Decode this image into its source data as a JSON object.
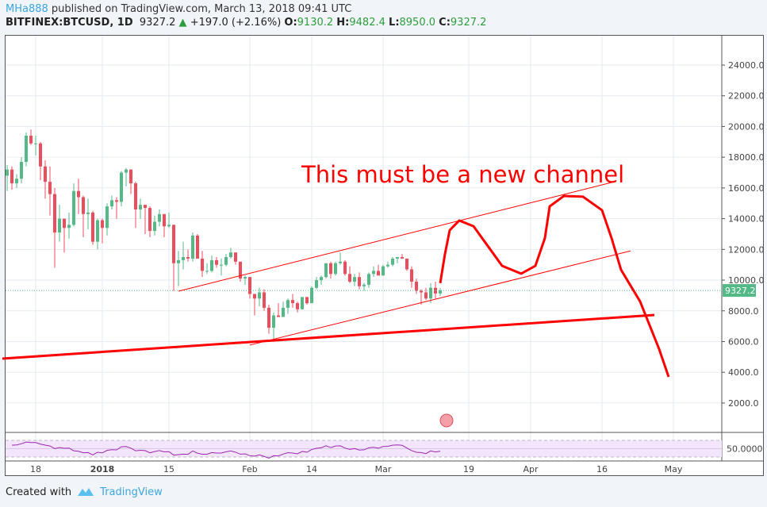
{
  "header": {
    "user": "MHa888",
    "published": "published on TradingView.com, March 13, 2018 09:41 UTC",
    "symbol": "BITFINEX:BTCUSD, 1D",
    "last": "9327.2",
    "change": "+197.0 (+2.16%)",
    "o_label": "O:",
    "o": "9130.2",
    "h_label": "H:",
    "h": "9482.4",
    "l_label": "L:",
    "l": "8950.0",
    "c_label": "C:",
    "c": "9327.2"
  },
  "footer": {
    "created": "Created with",
    "brand": "TradingView"
  },
  "chart_data": {
    "type": "candlestick",
    "colors": {
      "up": "#53b987",
      "down": "#eb4d5c",
      "drawing": "#ff0000",
      "rsi": "#9c27b0",
      "rsi_band": "#f3e5fc"
    },
    "price_ticks": [
      2000,
      4000,
      6000,
      8000,
      10000,
      12000,
      14000,
      16000,
      18000,
      20000,
      22000,
      24000
    ],
    "price_tick_labels": [
      "2000.0",
      "4000.0",
      "6000.0",
      "8000.0",
      "10000.0",
      "12000.0",
      "14000.0",
      "16000.0",
      "18000.0",
      "20000.0",
      "22000.0",
      "24000.0"
    ],
    "ylim": [
      0,
      25000
    ],
    "last_price_label": "9327.2",
    "time_ticks": [
      {
        "date": "2017-12-18",
        "label": "18"
      },
      {
        "date": "2018-01-01",
        "label": "2018"
      },
      {
        "date": "2018-01-15",
        "label": "15"
      },
      {
        "date": "2018-02-01",
        "label": "Feb"
      },
      {
        "date": "2018-02-14",
        "label": "14"
      },
      {
        "date": "2018-03-01",
        "label": "Mar"
      },
      {
        "date": "2018-03-19",
        "label": "19"
      },
      {
        "date": "2018-04-01",
        "label": "Apr"
      },
      {
        "date": "2018-04-16",
        "label": "16"
      },
      {
        "date": "2018-05-01",
        "label": "May"
      }
    ],
    "rsi_label": "50.0000",
    "annotation_text": "This must be a new channel",
    "candles": [
      [
        "2017-12-12",
        16800,
        17500,
        15800,
        17200
      ],
      [
        "2017-12-13",
        17200,
        17400,
        15900,
        16300
      ],
      [
        "2017-12-14",
        16300,
        16900,
        16000,
        16600
      ],
      [
        "2017-12-15",
        16600,
        18000,
        16300,
        17700
      ],
      [
        "2017-12-16",
        17700,
        19600,
        17400,
        19400
      ],
      [
        "2017-12-17",
        19400,
        19800,
        18800,
        18900
      ],
      [
        "2017-12-18",
        18900,
        19400,
        18100,
        18900
      ],
      [
        "2017-12-19",
        18900,
        19000,
        16500,
        17400
      ],
      [
        "2017-12-20",
        17400,
        17800,
        15300,
        16400
      ],
      [
        "2017-12-21",
        16400,
        17400,
        14200,
        15600
      ],
      [
        "2017-12-22",
        15600,
        16000,
        10800,
        13100
      ],
      [
        "2017-12-23",
        13100,
        14900,
        12500,
        14000
      ],
      [
        "2017-12-24",
        14000,
        14000,
        11800,
        13400
      ],
      [
        "2017-12-25",
        13400,
        14400,
        12700,
        13600
      ],
      [
        "2017-12-26",
        13600,
        16300,
        13500,
        15800
      ],
      [
        "2017-12-27",
        15800,
        16600,
        14300,
        15400
      ],
      [
        "2017-12-28",
        15400,
        15500,
        12800,
        14300
      ],
      [
        "2017-12-29",
        14300,
        15300,
        13300,
        14400
      ],
      [
        "2017-12-30",
        14400,
        14500,
        12300,
        12500
      ],
      [
        "2017-12-31",
        12500,
        14000,
        12000,
        13900
      ],
      [
        "2018-01-01",
        13900,
        14000,
        12400,
        13400
      ],
      [
        "2018-01-02",
        13400,
        15000,
        12900,
        14800
      ],
      [
        "2018-01-03",
        14800,
        15500,
        14600,
        15200
      ],
      [
        "2018-01-04",
        15200,
        15400,
        14000,
        15100
      ],
      [
        "2018-01-05",
        15100,
        17100,
        14800,
        17000
      ],
      [
        "2018-01-06",
        17000,
        17300,
        16100,
        17200
      ],
      [
        "2018-01-07",
        17200,
        17200,
        15600,
        16300
      ],
      [
        "2018-01-08",
        16300,
        16400,
        13400,
        14600
      ],
      [
        "2018-01-09",
        14600,
        15300,
        14000,
        14900
      ],
      [
        "2018-01-10",
        14900,
        14900,
        13000,
        14700
      ],
      [
        "2018-01-11",
        14700,
        14800,
        12800,
        13200
      ],
      [
        "2018-01-12",
        13200,
        14200,
        12900,
        13800
      ],
      [
        "2018-01-13",
        13800,
        14600,
        13500,
        14300
      ],
      [
        "2018-01-14",
        14300,
        14300,
        12800,
        13500
      ],
      [
        "2018-01-15",
        13500,
        14400,
        13400,
        13600
      ],
      [
        "2018-01-16",
        13600,
        13600,
        9300,
        11100
      ],
      [
        "2018-01-17",
        11100,
        11900,
        9600,
        11300
      ],
      [
        "2018-01-18",
        11300,
        12500,
        10700,
        11500
      ],
      [
        "2018-01-19",
        11500,
        12000,
        11200,
        11400
      ],
      [
        "2018-01-20",
        11400,
        13100,
        11200,
        12900
      ],
      [
        "2018-01-21",
        12900,
        13000,
        11400,
        11400
      ],
      [
        "2018-01-22",
        11400,
        11900,
        10200,
        10600
      ],
      [
        "2018-01-23",
        10600,
        11100,
        10400,
        10600
      ],
      [
        "2018-01-24",
        10600,
        11600,
        10500,
        11300
      ],
      [
        "2018-01-25",
        11300,
        11500,
        10800,
        11000
      ],
      [
        "2018-01-26",
        11000,
        11400,
        10300,
        11000
      ],
      [
        "2018-01-27",
        11000,
        11700,
        10900,
        11500
      ],
      [
        "2018-01-28",
        11500,
        12100,
        11400,
        11800
      ],
      [
        "2018-01-29",
        11800,
        11800,
        11000,
        11200
      ],
      [
        "2018-01-30",
        11200,
        11200,
        9900,
        10100
      ],
      [
        "2018-01-31",
        10100,
        10300,
        9700,
        10200
      ],
      [
        "2018-02-01",
        10200,
        10200,
        8800,
        9100
      ],
      [
        "2018-02-02",
        9100,
        9100,
        7700,
        8800
      ],
      [
        "2018-02-03",
        8800,
        9500,
        8300,
        9200
      ],
      [
        "2018-02-04",
        9200,
        9400,
        8000,
        8200
      ],
      [
        "2018-02-05",
        8200,
        8400,
        6500,
        6900
      ],
      [
        "2018-02-06",
        6900,
        7900,
        6000,
        7700
      ],
      [
        "2018-02-07",
        7700,
        8500,
        7600,
        7600
      ],
      [
        "2018-02-08",
        7600,
        8600,
        7600,
        8200
      ],
      [
        "2018-02-09",
        8200,
        8800,
        7800,
        8700
      ],
      [
        "2018-02-10",
        8700,
        9100,
        8200,
        8500
      ],
      [
        "2018-02-11",
        8500,
        8600,
        7900,
        8100
      ],
      [
        "2018-02-12",
        8100,
        8900,
        8100,
        8900
      ],
      [
        "2018-02-13",
        8900,
        8900,
        8400,
        8500
      ],
      [
        "2018-02-14",
        8500,
        9600,
        8500,
        9500
      ],
      [
        "2018-02-15",
        9500,
        10200,
        9400,
        10000
      ],
      [
        "2018-02-16",
        10000,
        10300,
        9700,
        10200
      ],
      [
        "2018-02-17",
        10200,
        11100,
        10100,
        11100
      ],
      [
        "2018-02-18",
        11100,
        11200,
        10100,
        10400
      ],
      [
        "2018-02-19",
        10400,
        11200,
        10300,
        11100
      ],
      [
        "2018-02-20",
        11100,
        11800,
        11000,
        11200
      ],
      [
        "2018-02-21",
        11200,
        11300,
        10300,
        10400
      ],
      [
        "2018-02-22",
        10400,
        10900,
        9800,
        9900
      ],
      [
        "2018-02-23",
        9900,
        10400,
        9600,
        10200
      ],
      [
        "2018-02-24",
        10200,
        10500,
        9400,
        9600
      ],
      [
        "2018-02-25",
        9600,
        9800,
        9300,
        9700
      ],
      [
        "2018-02-26",
        9700,
        10500,
        9500,
        10400
      ],
      [
        "2018-02-27",
        10400,
        10900,
        10200,
        10600
      ],
      [
        "2018-02-28",
        10600,
        11000,
        10300,
        10300
      ],
      [
        "2018-03-01",
        10300,
        11000,
        10300,
        10900
      ],
      [
        "2018-03-02",
        10900,
        11200,
        10800,
        11000
      ],
      [
        "2018-03-03",
        11000,
        11500,
        10900,
        11400
      ],
      [
        "2018-03-04",
        11400,
        11500,
        11100,
        11500
      ],
      [
        "2018-03-05",
        11500,
        11700,
        11400,
        11400
      ],
      [
        "2018-03-06",
        11400,
        11400,
        10600,
        10700
      ],
      [
        "2018-03-07",
        10700,
        10900,
        9500,
        9900
      ],
      [
        "2018-03-08",
        9900,
        10100,
        9100,
        9300
      ],
      [
        "2018-03-09",
        9300,
        9400,
        8400,
        9200
      ],
      [
        "2018-03-10",
        9200,
        9500,
        8700,
        8800
      ],
      [
        "2018-03-11",
        8800,
        9800,
        8500,
        9500
      ],
      [
        "2018-03-12",
        9500,
        9900,
        8800,
        9130.2
      ],
      [
        "2018-03-13",
        9130.2,
        9482.4,
        8950.0,
        9327.2
      ]
    ],
    "drawings": {
      "channel_upper": [
        [
          "2018-01-17",
          9280
        ],
        [
          "2018-04-18",
          16355
        ]
      ],
      "channel_lower": [
        [
          "2018-02-01",
          5770
        ],
        [
          "2018-04-22",
          11900
        ]
      ],
      "support_line": [
        [
          "2017-12-11",
          4890
        ],
        [
          "2018-04-27",
          7730
        ]
      ],
      "freehand": [
        [
          "2018-03-13",
          9800
        ],
        [
          "2018-03-14",
          11700
        ],
        [
          "2018-03-15",
          13250
        ],
        [
          "2018-03-17",
          13880
        ],
        [
          "2018-03-20",
          13510
        ],
        [
          "2018-03-23",
          12220
        ],
        [
          "2018-03-26",
          10930
        ],
        [
          "2018-03-30",
          10420
        ],
        [
          "2018-04-02",
          10930
        ],
        [
          "2018-04-04",
          12740
        ],
        [
          "2018-04-05",
          14800
        ],
        [
          "2018-04-08",
          15480
        ],
        [
          "2018-04-12",
          15430
        ],
        [
          "2018-04-16",
          14550
        ],
        [
          "2018-04-18",
          12740
        ],
        [
          "2018-04-20",
          10670
        ],
        [
          "2018-04-24",
          8610
        ],
        [
          "2018-04-26",
          7060
        ],
        [
          "2018-04-28",
          5510
        ],
        [
          "2018-04-30",
          3700
        ]
      ]
    }
  }
}
